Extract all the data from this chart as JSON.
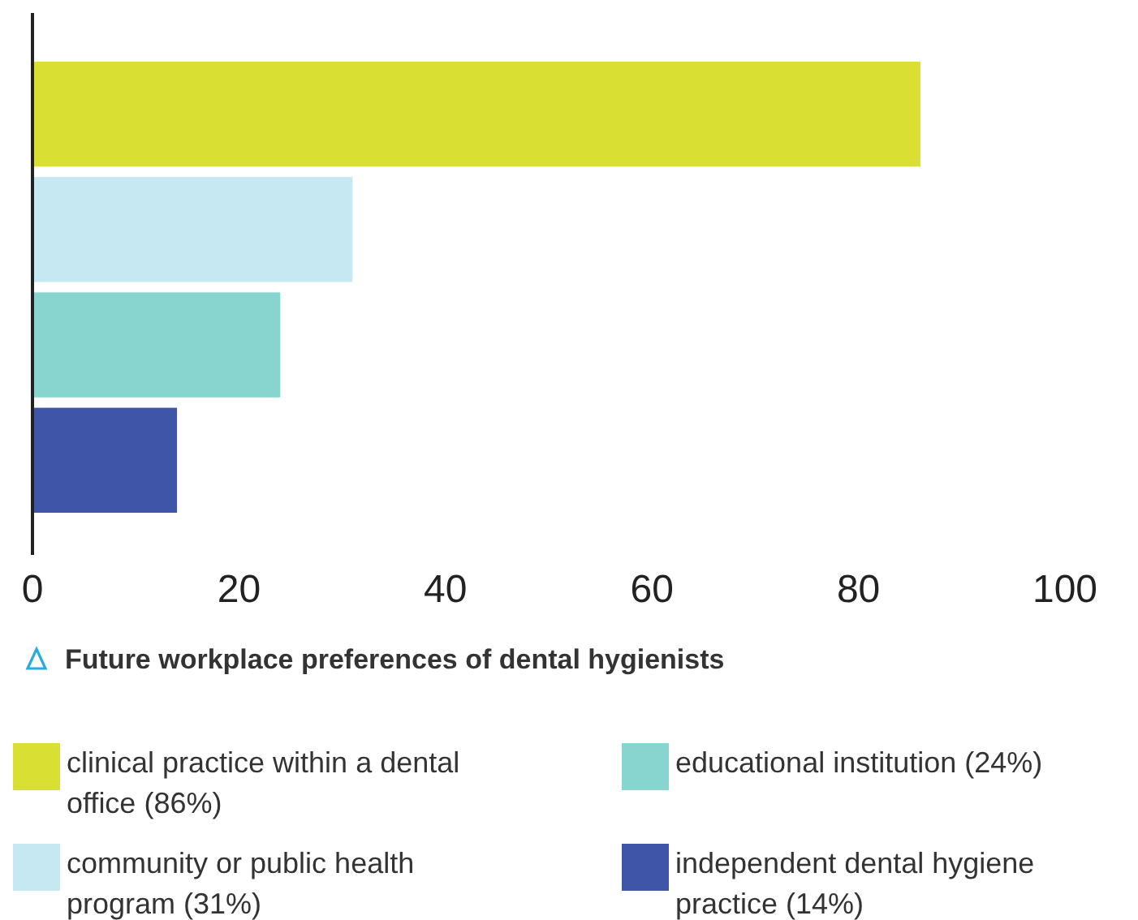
{
  "chart_data": {
    "type": "bar",
    "orientation": "horizontal",
    "title": "Future workplace preferences of dental hygienists",
    "categories": [
      null,
      null,
      null,
      null
    ],
    "series": [
      {
        "name": "clinical practice within a dental office (86%)",
        "color": "#d9e033",
        "values": [
          86,
          null,
          null,
          null
        ]
      },
      {
        "name": "community or public health program (31%)",
        "color": "#c5e8f2",
        "values": [
          null,
          31,
          null,
          null
        ]
      },
      {
        "name": "educational institution (24%)",
        "color": "#88d4cf",
        "values": [
          null,
          null,
          24,
          null
        ]
      },
      {
        "name": "independent dental hygiene practice (14%)",
        "color": "#3f56a8",
        "values": [
          null,
          null,
          null,
          14
        ]
      }
    ],
    "xlim": [
      0,
      100
    ],
    "xticks": [
      0,
      20,
      40,
      60,
      80,
      100
    ],
    "grid": false,
    "legend": "bottom"
  }
}
